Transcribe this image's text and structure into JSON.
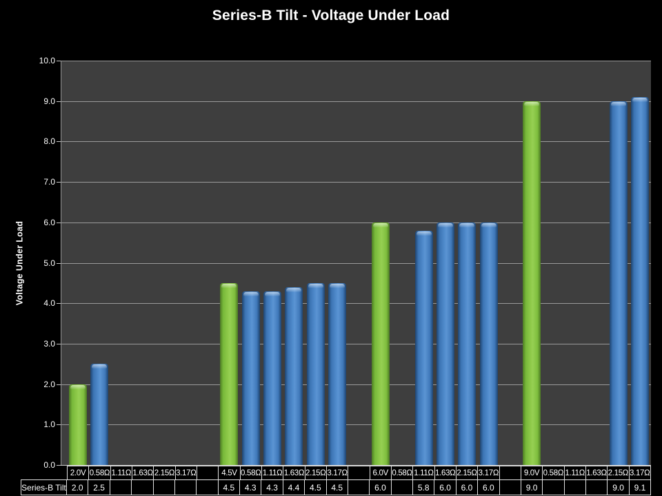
{
  "slide": {
    "title": "Series-B Tilt - Voltage Under Load",
    "background": "#000000"
  },
  "colors": {
    "plot_background": "#3e3e3e",
    "gridline": "#9b9b9b",
    "axis_line": "#d2d2d2",
    "tick_label_text": "#ffffff",
    "table_border": "#e2e2e2",
    "table_text": "#ffffff",
    "bar_green": "#8cc843",
    "bar_blue": "#4e87c9"
  },
  "y_axis": {
    "title": "Voltage Under Load",
    "tick_labels": [
      "10.0",
      "9.0",
      "8.0",
      "7.0",
      "6.0",
      "5.0",
      "4.0",
      "3.0",
      "2.0",
      "1.0",
      "0.0"
    ],
    "min": 0,
    "max": 10
  },
  "chart_data": {
    "type": "bar",
    "title": "Series-B Tilt - Voltage Under Load",
    "xlabel": "",
    "ylabel": "Voltage Under Load",
    "ylim": [
      0,
      10
    ],
    "grid": true,
    "legend": "none",
    "series_name": "Series-B Tilt",
    "columns": [
      {
        "label": "2.0V",
        "value": 2.0,
        "color": "green"
      },
      {
        "label": "0.58Ω",
        "value": 2.5,
        "color": "blue"
      },
      {
        "label": "1.11Ω",
        "value": null,
        "color": "blue"
      },
      {
        "label": "1.63Ω",
        "value": null,
        "color": "blue"
      },
      {
        "label": "2.15Ω",
        "value": null,
        "color": "blue"
      },
      {
        "label": "3.17Ω",
        "value": null,
        "color": "blue"
      },
      {
        "label": "",
        "value": null,
        "color": "gap"
      },
      {
        "label": "4.5V",
        "value": 4.5,
        "color": "green"
      },
      {
        "label": "0.58Ω",
        "value": 4.3,
        "color": "blue"
      },
      {
        "label": "1.11Ω",
        "value": 4.3,
        "color": "blue"
      },
      {
        "label": "1.63Ω",
        "value": 4.4,
        "color": "blue"
      },
      {
        "label": "2.15Ω",
        "value": 4.5,
        "color": "blue"
      },
      {
        "label": "3.17Ω",
        "value": 4.5,
        "color": "blue"
      },
      {
        "label": "",
        "value": null,
        "color": "gap"
      },
      {
        "label": "6.0V",
        "value": 6.0,
        "color": "green"
      },
      {
        "label": "0.58Ω",
        "value": null,
        "color": "blue"
      },
      {
        "label": "1.11Ω",
        "value": 5.8,
        "color": "blue"
      },
      {
        "label": "1.63Ω",
        "value": 6.0,
        "color": "blue"
      },
      {
        "label": "2.15Ω",
        "value": 6.0,
        "color": "blue"
      },
      {
        "label": "3.17Ω",
        "value": 6.0,
        "color": "blue"
      },
      {
        "label": "",
        "value": null,
        "color": "gap"
      },
      {
        "label": "9.0V",
        "value": 9.0,
        "color": "green"
      },
      {
        "label": "0.58Ω",
        "value": null,
        "color": "blue"
      },
      {
        "label": "1.11Ω",
        "value": null,
        "color": "blue"
      },
      {
        "label": "1.63Ω",
        "value": null,
        "color": "blue"
      },
      {
        "label": "2.15Ω",
        "value": 9.0,
        "color": "blue"
      },
      {
        "label": "3.17Ω",
        "value": 9.1,
        "color": "blue"
      }
    ]
  }
}
